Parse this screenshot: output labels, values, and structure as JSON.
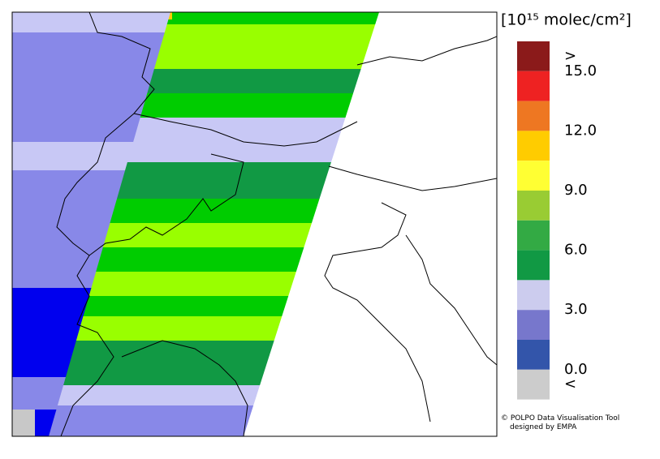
{
  "legend": {
    "title": "[10¹⁵ molec/cm²]",
    "colors": [
      "#8b1a1a",
      "#ee2222",
      "#ee7722",
      "#ffcc00",
      "#ffff33",
      "#99cc33",
      "#33aa44",
      "#119944",
      "#ccccee",
      "#7777cc",
      "#3355aa",
      "#cccccc"
    ],
    "labels": [
      ">",
      "15.0",
      "12.0",
      "9.0",
      "6.0",
      "3.0",
      "0.0",
      "<"
    ]
  },
  "credit": {
    "line1": "© POLPO Data Visualisation Tool",
    "line2": "designed by EMPA"
  }
}
